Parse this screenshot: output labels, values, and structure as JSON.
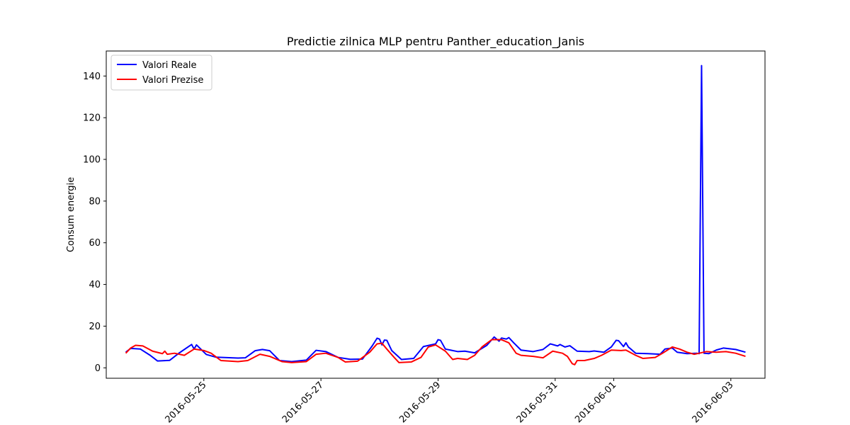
{
  "chart_data": {
    "type": "line",
    "title": "Predictie zilnica MLP pentru Panther_education_Janis",
    "xlabel": "",
    "ylabel": "Consum energie",
    "xlim": [
      "2016-05-23 08:00",
      "2016-06-03 14:00"
    ],
    "ylim": [
      -5,
      152
    ],
    "yticks": [
      0,
      20,
      40,
      60,
      80,
      100,
      120,
      140
    ],
    "xticks": [
      "2016-05-25",
      "2016-05-27",
      "2016-05-29",
      "2016-05-31",
      "2016-06-01",
      "2016-06-03"
    ],
    "grid": false,
    "legend_position": "top-left",
    "series": [
      {
        "name": "Valori Reale",
        "color": "#0000ff",
        "points": [
          [
            "2016-05-23 16:00",
            7.5
          ],
          [
            "2016-05-23 18:00",
            9.3
          ],
          [
            "2016-05-23 22:00",
            9.0
          ],
          [
            "2016-05-24 02:00",
            6.0
          ],
          [
            "2016-05-24 05:00",
            3.3
          ],
          [
            "2016-05-24 10:00",
            3.6
          ],
          [
            "2016-05-24 14:00",
            7.2
          ],
          [
            "2016-05-24 19:00",
            11.2
          ],
          [
            "2016-05-24 20:00",
            9.0
          ],
          [
            "2016-05-24 21:00",
            11.0
          ],
          [
            "2016-05-25 01:00",
            6.4
          ],
          [
            "2016-05-25 05:00",
            5.1
          ],
          [
            "2016-05-25 14:00",
            4.7
          ],
          [
            "2016-05-25 17:00",
            4.8
          ],
          [
            "2016-05-25 21:00",
            8.2
          ],
          [
            "2016-05-26 00:00",
            8.8
          ],
          [
            "2016-05-26 03:00",
            8.2
          ],
          [
            "2016-05-26 07:00",
            3.5
          ],
          [
            "2016-05-26 12:00",
            3.0
          ],
          [
            "2016-05-26 18:00",
            3.7
          ],
          [
            "2016-05-26 22:00",
            8.4
          ],
          [
            "2016-05-27 02:00",
            7.8
          ],
          [
            "2016-05-27 07:00",
            5.0
          ],
          [
            "2016-05-27 12:00",
            4.1
          ],
          [
            "2016-05-27 17:00",
            4.2
          ],
          [
            "2016-05-27 21:00",
            10.5
          ],
          [
            "2016-05-27 23:00",
            14.2
          ],
          [
            "2016-05-28 00:00",
            13.8
          ],
          [
            "2016-05-28 01:00",
            11.0
          ],
          [
            "2016-05-28 02:00",
            13.3
          ],
          [
            "2016-05-28 03:00",
            13.2
          ],
          [
            "2016-05-28 05:00",
            8.3
          ],
          [
            "2016-05-28 09:00",
            4.0
          ],
          [
            "2016-05-28 14:00",
            4.5
          ],
          [
            "2016-05-28 18:00",
            10.2
          ],
          [
            "2016-05-28 23:00",
            11.5
          ],
          [
            "2016-05-29 00:00",
            13.5
          ],
          [
            "2016-05-29 01:00",
            13.2
          ],
          [
            "2016-05-29 03:00",
            9.0
          ],
          [
            "2016-05-29 08:00",
            7.8
          ],
          [
            "2016-05-29 11:00",
            8.0
          ],
          [
            "2016-05-29 15:00",
            7.2
          ],
          [
            "2016-05-29 20:00",
            10.8
          ],
          [
            "2016-05-29 23:00",
            14.8
          ],
          [
            "2016-05-30 01:00",
            12.8
          ],
          [
            "2016-05-30 02:00",
            14.3
          ],
          [
            "2016-05-30 04:00",
            13.8
          ],
          [
            "2016-05-30 05:00",
            14.5
          ],
          [
            "2016-05-30 07:00",
            12.0
          ],
          [
            "2016-05-30 10:00",
            8.5
          ],
          [
            "2016-05-30 15:00",
            7.8
          ],
          [
            "2016-05-30 19:00",
            8.8
          ],
          [
            "2016-05-30 22:00",
            11.5
          ],
          [
            "2016-05-31 01:00",
            10.5
          ],
          [
            "2016-05-31 02:00",
            11.2
          ],
          [
            "2016-05-31 04:00",
            10.0
          ],
          [
            "2016-05-31 06:00",
            10.6
          ],
          [
            "2016-05-31 09:00",
            8.0
          ],
          [
            "2016-05-31 14:00",
            7.8
          ],
          [
            "2016-05-31 16:00",
            8.1
          ],
          [
            "2016-05-31 20:00",
            7.5
          ],
          [
            "2016-05-31 23:00",
            10.0
          ],
          [
            "2016-06-01 01:00",
            13.2
          ],
          [
            "2016-06-01 02:00",
            13.0
          ],
          [
            "2016-06-01 04:00",
            10.2
          ],
          [
            "2016-06-01 05:00",
            12.0
          ],
          [
            "2016-06-01 06:00",
            10.0
          ],
          [
            "2016-06-01 09:00",
            7.0
          ],
          [
            "2016-06-01 14:00",
            6.8
          ],
          [
            "2016-06-01 19:00",
            6.5
          ],
          [
            "2016-06-01 21:00",
            9.0
          ],
          [
            "2016-06-02 00:00",
            9.5
          ],
          [
            "2016-06-02 02:00",
            7.5
          ],
          [
            "2016-06-02 06:00",
            6.8
          ],
          [
            "2016-06-02 10:00",
            7.0
          ],
          [
            "2016-06-02 11:00",
            6.8
          ],
          [
            "2016-06-02 12:00",
            145.0
          ],
          [
            "2016-06-02 13:00",
            7.0
          ],
          [
            "2016-06-02 15:00",
            6.8
          ],
          [
            "2016-06-02 18:00",
            8.5
          ],
          [
            "2016-06-02 21:00",
            9.5
          ],
          [
            "2016-06-03 02:00",
            8.8
          ],
          [
            "2016-06-03 06:00",
            7.5
          ]
        ]
      },
      {
        "name": "Valori Prezise",
        "color": "#ff0000",
        "points": [
          [
            "2016-05-23 16:00",
            7.0
          ],
          [
            "2016-05-23 18:00",
            9.5
          ],
          [
            "2016-05-23 20:00",
            10.8
          ],
          [
            "2016-05-23 23:00",
            10.5
          ],
          [
            "2016-05-24 03:00",
            8.0
          ],
          [
            "2016-05-24 07:00",
            6.8
          ],
          [
            "2016-05-24 08:00",
            8.0
          ],
          [
            "2016-05-24 09:00",
            6.5
          ],
          [
            "2016-05-24 12:00",
            7.0
          ],
          [
            "2016-05-24 16:00",
            6.0
          ],
          [
            "2016-05-24 20:00",
            9.0
          ],
          [
            "2016-05-25 00:00",
            8.3
          ],
          [
            "2016-05-25 03:00",
            7.0
          ],
          [
            "2016-05-25 07:00",
            3.5
          ],
          [
            "2016-05-25 14:00",
            3.0
          ],
          [
            "2016-05-25 18:00",
            3.5
          ],
          [
            "2016-05-25 23:00",
            6.5
          ],
          [
            "2016-05-26 03:00",
            5.5
          ],
          [
            "2016-05-26 08:00",
            3.0
          ],
          [
            "2016-05-26 12:00",
            2.5
          ],
          [
            "2016-05-26 18:00",
            3.0
          ],
          [
            "2016-05-26 22:00",
            6.5
          ],
          [
            "2016-05-27 02:00",
            7.0
          ],
          [
            "2016-05-27 07:00",
            5.0
          ],
          [
            "2016-05-27 10:00",
            2.8
          ],
          [
            "2016-05-27 15:00",
            3.2
          ],
          [
            "2016-05-27 20:00",
            7.5
          ],
          [
            "2016-05-27 23:00",
            11.5
          ],
          [
            "2016-05-28 01:00",
            11.8
          ],
          [
            "2016-05-28 03:00",
            9.0
          ],
          [
            "2016-05-28 06:00",
            5.0
          ],
          [
            "2016-05-28 08:00",
            2.5
          ],
          [
            "2016-05-28 13:00",
            2.8
          ],
          [
            "2016-05-28 17:00",
            5.0
          ],
          [
            "2016-05-28 20:00",
            10.0
          ],
          [
            "2016-05-28 23:00",
            11.0
          ],
          [
            "2016-05-29 03:00",
            8.0
          ],
          [
            "2016-05-29 06:00",
            4.0
          ],
          [
            "2016-05-29 08:00",
            4.5
          ],
          [
            "2016-05-29 12:00",
            4.0
          ],
          [
            "2016-05-29 15:00",
            6.0
          ],
          [
            "2016-05-29 18:00",
            10.0
          ],
          [
            "2016-05-29 22:00",
            13.5
          ],
          [
            "2016-05-30 02:00",
            13.5
          ],
          [
            "2016-05-30 05:00",
            12.0
          ],
          [
            "2016-05-30 08:00",
            7.0
          ],
          [
            "2016-05-30 10:00",
            6.0
          ],
          [
            "2016-05-30 15:00",
            5.5
          ],
          [
            "2016-05-30 19:00",
            4.8
          ],
          [
            "2016-05-30 23:00",
            8.0
          ],
          [
            "2016-05-31 03:00",
            7.0
          ],
          [
            "2016-05-31 05:00",
            5.5
          ],
          [
            "2016-05-31 07:00",
            2.0
          ],
          [
            "2016-05-31 08:00",
            1.5
          ],
          [
            "2016-05-31 09:00",
            3.5
          ],
          [
            "2016-05-31 12:00",
            3.5
          ],
          [
            "2016-05-31 16:00",
            4.5
          ],
          [
            "2016-05-31 19:00",
            6.0
          ],
          [
            "2016-05-31 23:00",
            8.5
          ],
          [
            "2016-06-01 03:00",
            8.3
          ],
          [
            "2016-06-01 05:00",
            8.5
          ],
          [
            "2016-06-01 09:00",
            6.0
          ],
          [
            "2016-06-01 12:00",
            4.5
          ],
          [
            "2016-06-01 17:00",
            5.0
          ],
          [
            "2016-06-01 20:00",
            7.0
          ],
          [
            "2016-06-02 00:00",
            10.0
          ],
          [
            "2016-06-02 03:00",
            9.0
          ],
          [
            "2016-06-02 06:00",
            7.5
          ],
          [
            "2016-06-02 09:00",
            6.5
          ],
          [
            "2016-06-02 11:00",
            7.0
          ],
          [
            "2016-06-02 14:00",
            7.8
          ],
          [
            "2016-06-02 18:00",
            7.5
          ],
          [
            "2016-06-02 22:00",
            7.8
          ],
          [
            "2016-06-03 02:00",
            7.0
          ],
          [
            "2016-06-03 06:00",
            5.5
          ]
        ]
      }
    ]
  }
}
